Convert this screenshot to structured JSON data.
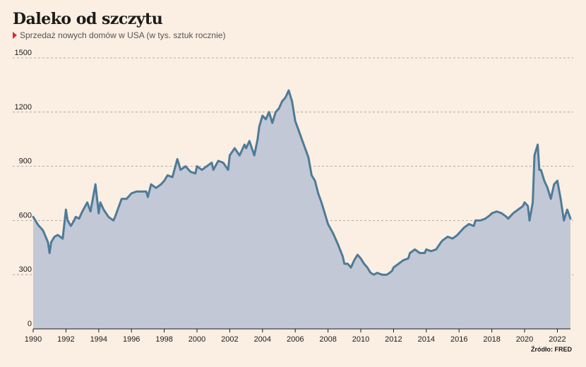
{
  "header": {
    "title": "Daleko od szczytu",
    "subtitle": "Sprzedaż nowych domów w USA (w tys. sztuk  rocznie)",
    "source": "Źródło: FRED"
  },
  "colors": {
    "background": "#fbeee2",
    "area_fill": "#c3c8d6",
    "line": "#4e7b97",
    "grid": "#9a9a9a",
    "marker": "#e1262d"
  },
  "chart_data": {
    "type": "area",
    "title": "Daleko od szczytu",
    "subtitle": "Sprzedaż nowych domów w USA (w tys. sztuk  rocznie)",
    "xlabel": "",
    "ylabel": "",
    "xlim": [
      1990,
      2022.8
    ],
    "ylim": [
      0,
      1500
    ],
    "x_ticks": [
      1990,
      1992,
      1994,
      1996,
      1998,
      2000,
      2002,
      2004,
      2006,
      2008,
      2010,
      2012,
      2014,
      2016,
      2018,
      2020,
      2022
    ],
    "y_ticks": [
      0,
      300,
      600,
      900,
      1200,
      1500
    ],
    "grid": "horizontal dashed",
    "series": [
      {
        "x": [
          1990.0,
          1990.3,
          1990.6,
          1990.9,
          1991.0,
          1991.1,
          1991.3,
          1991.5,
          1991.8,
          1992.0,
          1992.1,
          1992.3,
          1992.5,
          1992.6,
          1992.8,
          1993.0,
          1993.3,
          1993.5,
          1993.8,
          1994.0,
          1994.1,
          1994.3,
          1994.6,
          1994.9,
          1995.0,
          1995.4,
          1995.7,
          1996.0,
          1996.3,
          1996.6,
          1996.9,
          1997.0,
          1997.2,
          1997.5,
          1997.8,
          1998.0,
          1998.2,
          1998.5,
          1998.8,
          1999.0,
          1999.3,
          1999.6,
          1999.9,
          2000.0,
          2000.3,
          2000.6,
          2000.9,
          2001.0,
          2001.3,
          2001.6,
          2001.9,
          2002.0,
          2002.3,
          2002.6,
          2002.9,
          2003.0,
          2003.2,
          2003.5,
          2003.7,
          2003.8,
          2004.0,
          2004.2,
          2004.4,
          2004.6,
          2004.8,
          2005.0,
          2005.2,
          2005.4,
          2005.6,
          2005.8,
          2006.0,
          2006.2,
          2006.4,
          2006.6,
          2006.8,
          2007.0,
          2007.2,
          2007.4,
          2007.6,
          2007.8,
          2008.0,
          2008.3,
          2008.6,
          2008.9,
          2009.0,
          2009.2,
          2009.4,
          2009.6,
          2009.8,
          2010.0,
          2010.2,
          2010.4,
          2010.6,
          2010.8,
          2011.0,
          2011.3,
          2011.6,
          2011.9,
          2012.0,
          2012.3,
          2012.6,
          2012.9,
          2013.0,
          2013.3,
          2013.6,
          2013.9,
          2014.0,
          2014.3,
          2014.6,
          2014.9,
          2015.0,
          2015.3,
          2015.6,
          2015.9,
          2016.0,
          2016.3,
          2016.6,
          2016.9,
          2017.0,
          2017.3,
          2017.6,
          2017.9,
          2018.0,
          2018.3,
          2018.6,
          2018.9,
          2019.0,
          2019.3,
          2019.6,
          2019.9,
          2020.0,
          2020.2,
          2020.3,
          2020.5,
          2020.6,
          2020.8,
          2020.9,
          2021.0,
          2021.2,
          2021.4,
          2021.6,
          2021.8,
          2022.0,
          2022.2,
          2022.4,
          2022.6,
          2022.8
        ],
        "values": [
          620,
          575,
          545,
          480,
          420,
          480,
          510,
          520,
          500,
          660,
          600,
          570,
          600,
          620,
          610,
          650,
          700,
          650,
          800,
          640,
          700,
          660,
          620,
          600,
          620,
          720,
          720,
          750,
          760,
          760,
          760,
          730,
          800,
          780,
          800,
          820,
          850,
          840,
          940,
          880,
          900,
          870,
          860,
          900,
          880,
          900,
          920,
          880,
          930,
          920,
          880,
          960,
          1000,
          960,
          1020,
          1000,
          1040,
          960,
          1050,
          1120,
          1180,
          1160,
          1200,
          1140,
          1200,
          1220,
          1260,
          1280,
          1320,
          1260,
          1150,
          1100,
          1050,
          1000,
          950,
          850,
          820,
          750,
          700,
          640,
          580,
          530,
          470,
          400,
          360,
          360,
          340,
          380,
          410,
          390,
          360,
          340,
          310,
          300,
          310,
          300,
          300,
          320,
          340,
          360,
          380,
          390,
          420,
          440,
          420,
          420,
          440,
          430,
          440,
          480,
          490,
          510,
          500,
          520,
          530,
          560,
          580,
          570,
          600,
          600,
          610,
          630,
          640,
          650,
          640,
          620,
          610,
          640,
          660,
          680,
          700,
          680,
          600,
          700,
          960,
          1020,
          880,
          880,
          820,
          780,
          720,
          800,
          820,
          720,
          600,
          660,
          610
        ]
      }
    ]
  }
}
